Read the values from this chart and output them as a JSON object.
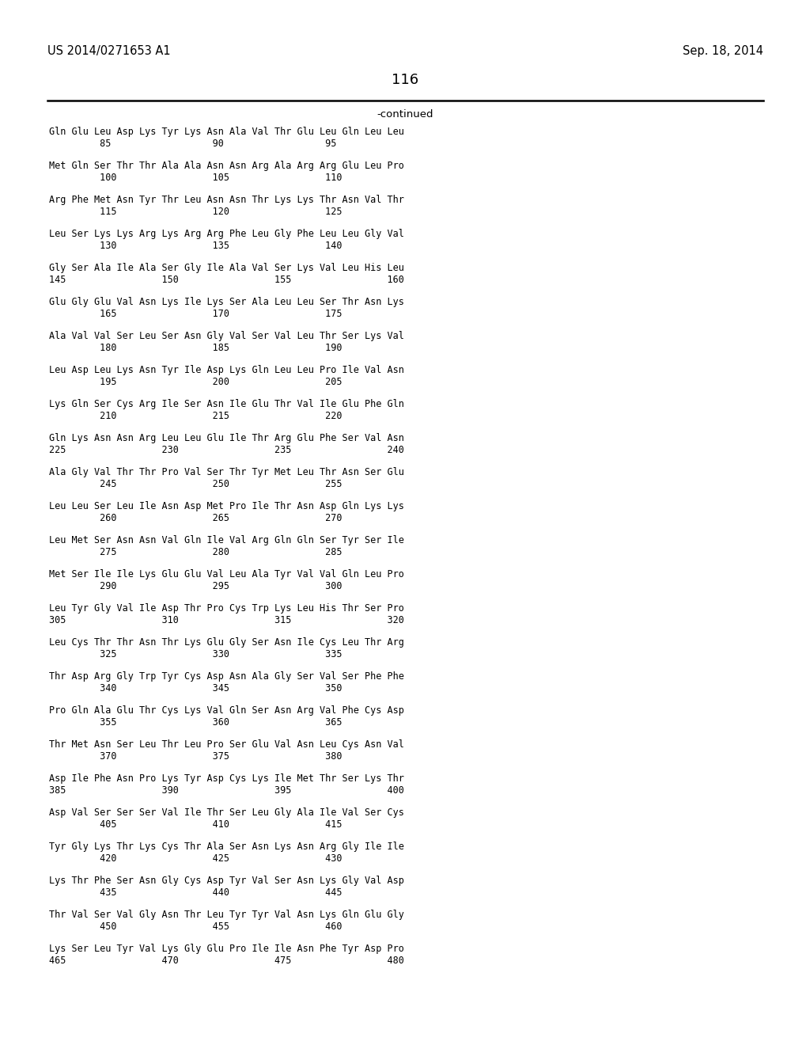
{
  "patent_number": "US 2014/0271653 A1",
  "date": "Sep. 18, 2014",
  "page_number": "116",
  "continued_label": "-continued",
  "background_color": "#ffffff",
  "text_color": "#000000",
  "lines": [
    {
      "seq": "Gln Glu Leu Asp Lys Tyr Lys Asn Ala Val Thr Glu Leu Gln Leu Leu",
      "num": "         85                  90                  95"
    },
    {
      "seq": "Met Gln Ser Thr Thr Ala Ala Asn Asn Arg Ala Arg Arg Glu Leu Pro",
      "num": "         100                 105                 110"
    },
    {
      "seq": "Arg Phe Met Asn Tyr Thr Leu Asn Asn Thr Lys Lys Thr Asn Val Thr",
      "num": "         115                 120                 125"
    },
    {
      "seq": "Leu Ser Lys Lys Arg Lys Arg Arg Phe Leu Gly Phe Leu Leu Gly Val",
      "num": "         130                 135                 140"
    },
    {
      "seq": "Gly Ser Ala Ile Ala Ser Gly Ile Ala Val Ser Lys Val Leu His Leu",
      "num": "145                 150                 155                 160"
    },
    {
      "seq": "Glu Gly Glu Val Asn Lys Ile Lys Ser Ala Leu Leu Ser Thr Asn Lys",
      "num": "         165                 170                 175"
    },
    {
      "seq": "Ala Val Val Ser Leu Ser Asn Gly Val Ser Val Leu Thr Ser Lys Val",
      "num": "         180                 185                 190"
    },
    {
      "seq": "Leu Asp Leu Lys Asn Tyr Ile Asp Lys Gln Leu Leu Pro Ile Val Asn",
      "num": "         195                 200                 205"
    },
    {
      "seq": "Lys Gln Ser Cys Arg Ile Ser Asn Ile Glu Thr Val Ile Glu Phe Gln",
      "num": "         210                 215                 220"
    },
    {
      "seq": "Gln Lys Asn Asn Arg Leu Leu Glu Ile Thr Arg Glu Phe Ser Val Asn",
      "num": "225                 230                 235                 240"
    },
    {
      "seq": "Ala Gly Val Thr Thr Pro Val Ser Thr Tyr Met Leu Thr Asn Ser Glu",
      "num": "         245                 250                 255"
    },
    {
      "seq": "Leu Leu Ser Leu Ile Asn Asp Met Pro Ile Thr Asn Asp Gln Lys Lys",
      "num": "         260                 265                 270"
    },
    {
      "seq": "Leu Met Ser Asn Asn Val Gln Ile Val Arg Gln Gln Ser Tyr Ser Ile",
      "num": "         275                 280                 285"
    },
    {
      "seq": "Met Ser Ile Ile Lys Glu Glu Val Leu Ala Tyr Val Val Gln Leu Pro",
      "num": "         290                 295                 300"
    },
    {
      "seq": "Leu Tyr Gly Val Ile Asp Thr Pro Cys Trp Lys Leu His Thr Ser Pro",
      "num": "305                 310                 315                 320"
    },
    {
      "seq": "Leu Cys Thr Thr Asn Thr Lys Glu Gly Ser Asn Ile Cys Leu Thr Arg",
      "num": "         325                 330                 335"
    },
    {
      "seq": "Thr Asp Arg Gly Trp Tyr Cys Asp Asn Ala Gly Ser Val Ser Phe Phe",
      "num": "         340                 345                 350"
    },
    {
      "seq": "Pro Gln Ala Glu Thr Cys Lys Val Gln Ser Asn Arg Val Phe Cys Asp",
      "num": "         355                 360                 365"
    },
    {
      "seq": "Thr Met Asn Ser Leu Thr Leu Pro Ser Glu Val Asn Leu Cys Asn Val",
      "num": "         370                 375                 380"
    },
    {
      "seq": "Asp Ile Phe Asn Pro Lys Tyr Asp Cys Lys Ile Met Thr Ser Lys Thr",
      "num": "385                 390                 395                 400"
    },
    {
      "seq": "Asp Val Ser Ser Ser Val Ile Thr Ser Leu Gly Ala Ile Val Ser Cys",
      "num": "         405                 410                 415"
    },
    {
      "seq": "Tyr Gly Lys Thr Lys Cys Thr Ala Ser Asn Lys Asn Arg Gly Ile Ile",
      "num": "         420                 425                 430"
    },
    {
      "seq": "Lys Thr Phe Ser Asn Gly Cys Asp Tyr Val Ser Asn Lys Gly Val Asp",
      "num": "         435                 440                 445"
    },
    {
      "seq": "Thr Val Ser Val Gly Asn Thr Leu Tyr Tyr Val Asn Lys Gln Glu Gly",
      "num": "         450                 455                 460"
    },
    {
      "seq": "Lys Ser Leu Tyr Val Lys Gly Glu Pro Ile Ile Asn Phe Tyr Asp Pro",
      "num": "465                 470                 475                 480"
    }
  ]
}
